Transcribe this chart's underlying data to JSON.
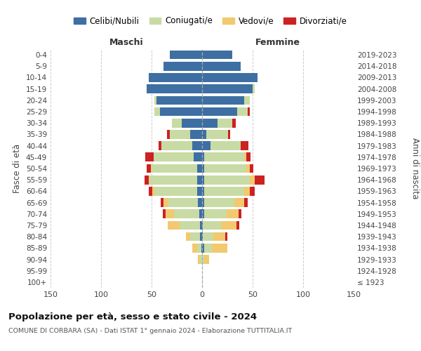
{
  "age_groups": [
    "100+",
    "95-99",
    "90-94",
    "85-89",
    "80-84",
    "75-79",
    "70-74",
    "65-69",
    "60-64",
    "55-59",
    "50-54",
    "45-49",
    "40-44",
    "35-39",
    "30-34",
    "25-29",
    "20-24",
    "15-19",
    "10-14",
    "5-9",
    "0-4"
  ],
  "birth_years": [
    "≤ 1923",
    "1924-1928",
    "1929-1933",
    "1934-1938",
    "1939-1943",
    "1944-1948",
    "1949-1953",
    "1954-1958",
    "1959-1963",
    "1964-1968",
    "1969-1973",
    "1974-1978",
    "1979-1983",
    "1984-1988",
    "1989-1993",
    "1994-1998",
    "1999-2003",
    "2004-2008",
    "2009-2013",
    "2014-2018",
    "2019-2023"
  ],
  "maschi": {
    "celibi": [
      0,
      0,
      0,
      1,
      2,
      2,
      3,
      4,
      5,
      5,
      5,
      8,
      10,
      12,
      20,
      42,
      45,
      55,
      53,
      38,
      32
    ],
    "coniugati": [
      0,
      0,
      2,
      4,
      10,
      20,
      25,
      30,
      42,
      47,
      45,
      40,
      30,
      20,
      10,
      5,
      2,
      0,
      0,
      0,
      0
    ],
    "vedovi": [
      0,
      0,
      2,
      5,
      4,
      12,
      8,
      4,
      2,
      1,
      1,
      0,
      0,
      0,
      0,
      0,
      0,
      0,
      0,
      0,
      0
    ],
    "divorziati": [
      0,
      0,
      0,
      0,
      0,
      0,
      3,
      3,
      4,
      4,
      4,
      8,
      3,
      3,
      0,
      0,
      0,
      0,
      0,
      0,
      0
    ]
  },
  "femmine": {
    "nubili": [
      0,
      0,
      0,
      2,
      1,
      1,
      2,
      2,
      2,
      2,
      2,
      2,
      8,
      4,
      15,
      35,
      42,
      50,
      55,
      38,
      30
    ],
    "coniugate": [
      0,
      0,
      2,
      8,
      10,
      18,
      22,
      30,
      40,
      45,
      42,
      40,
      30,
      22,
      15,
      10,
      5,
      2,
      0,
      0,
      0
    ],
    "vedove": [
      0,
      0,
      5,
      15,
      12,
      15,
      12,
      10,
      5,
      5,
      3,
      2,
      0,
      0,
      0,
      0,
      0,
      0,
      0,
      0,
      0
    ],
    "divorziate": [
      0,
      0,
      0,
      0,
      2,
      3,
      3,
      3,
      5,
      10,
      4,
      4,
      8,
      2,
      3,
      2,
      0,
      0,
      0,
      0,
      0
    ]
  },
  "colors": {
    "celibi": "#3e6fa3",
    "coniugati": "#c8dba4",
    "vedovi": "#f2c96e",
    "divorziati": "#cc2222"
  },
  "xlim": 150,
  "title": "Popolazione per età, sesso e stato civile - 2024",
  "subtitle": "COMUNE DI CORBARA (SA) - Dati ISTAT 1° gennaio 2024 - Elaborazione TUTTITALIA.IT",
  "ylabel_left": "Fasce di età",
  "ylabel_right": "Anni di nascita",
  "xlabel_left": "Maschi",
  "xlabel_right": "Femmine",
  "bg_color": "#ffffff",
  "grid_color": "#cccccc",
  "legend_labels": [
    "Celibi/Nubili",
    "Coniugati/e",
    "Vedovi/e",
    "Divorziati/e"
  ]
}
